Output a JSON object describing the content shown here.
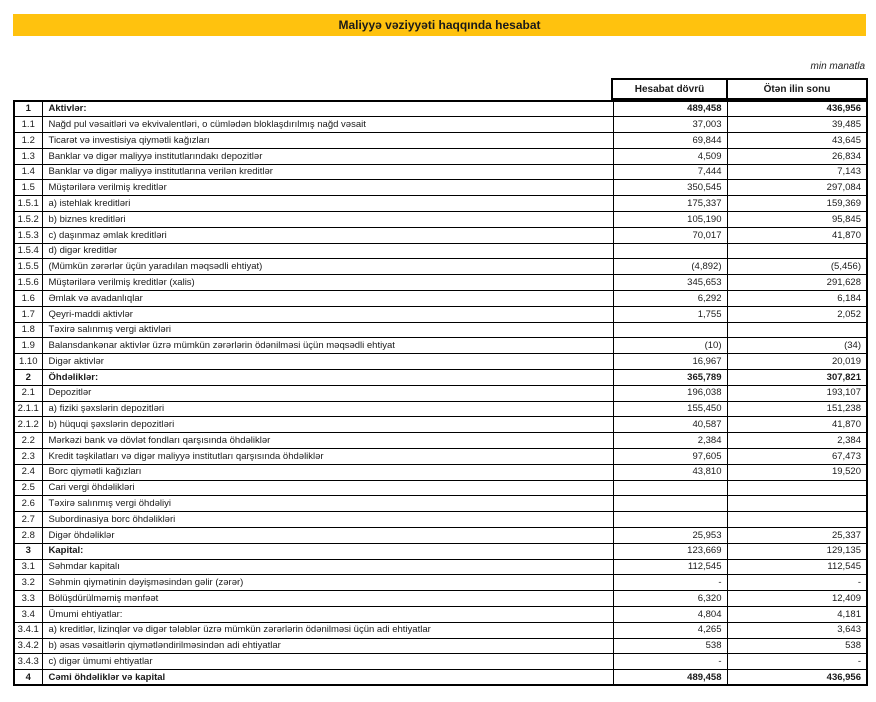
{
  "report": {
    "title": "Maliyyə vəziyyəti haqqında hesabat",
    "unit_note": "min manatla",
    "columns": {
      "current": "Hesabat dövrü",
      "previous": "Ötən ilin sonu"
    }
  },
  "colors": {
    "banner": "#FFC20E",
    "banner_text": "#1A1A1A",
    "border": "#000000"
  },
  "table": {
    "rows": [
      {
        "num": "1",
        "label": "Aktivlər:",
        "current": "489,458",
        "previous": "436,956",
        "bold_label": true,
        "bold_values": true
      },
      {
        "num": "1.1",
        "label": "Nağd pul vəsaitləri və ekvivalentləri, o cümlədən bloklaşdırılmış nağd vəsait",
        "current": "37,003",
        "previous": "39,485",
        "bold_label": false,
        "bold_values": false
      },
      {
        "num": "1.2",
        "label": "Ticarət və investisiya qiymətli kağızları",
        "current": "69,844",
        "previous": "43,645",
        "bold_label": false,
        "bold_values": false
      },
      {
        "num": "1.3",
        "label": "Banklar və digər maliyyə institutlarındakı depozitlər",
        "current": "4,509",
        "previous": "26,834",
        "bold_label": false,
        "bold_values": false
      },
      {
        "num": "1.4",
        "label": "Banklar və digər maliyyə institutlarına verilən kreditlər",
        "current": "7,444",
        "previous": "7,143",
        "bold_label": false,
        "bold_values": false
      },
      {
        "num": "1.5",
        "label": "Müştərilərə verilmiş kreditlər",
        "current": "350,545",
        "previous": "297,084",
        "bold_label": false,
        "bold_values": false
      },
      {
        "num": "1.5.1",
        "label": "a) istehlak kreditləri",
        "current": "175,337",
        "previous": "159,369",
        "bold_label": false,
        "bold_values": false
      },
      {
        "num": "1.5.2",
        "label": "b) biznes kreditləri",
        "current": "105,190",
        "previous": "95,845",
        "bold_label": false,
        "bold_values": false
      },
      {
        "num": "1.5.3",
        "label": "c) daşınmaz əmlak kreditləri",
        "current": "70,017",
        "previous": "41,870",
        "bold_label": false,
        "bold_values": false
      },
      {
        "num": "1.5.4",
        "label": "d) digər kreditlər",
        "current": "",
        "previous": "",
        "bold_label": false,
        "bold_values": false
      },
      {
        "num": "1.5.5",
        "label": "(Mümkün zərərlər üçün yaradılan məqsədli ehtiyat)",
        "current": "(4,892)",
        "previous": "(5,456)",
        "bold_label": false,
        "bold_values": false
      },
      {
        "num": "1.5.6",
        "label": "Müştərilərə verilmiş kreditlər (xalis)",
        "current": "345,653",
        "previous": "291,628",
        "bold_label": false,
        "bold_values": false
      },
      {
        "num": "1.6",
        "label": "Əmlak və avadanlıqlar",
        "current": "6,292",
        "previous": "6,184",
        "bold_label": false,
        "bold_values": false
      },
      {
        "num": "1.7",
        "label": "Qeyri-maddi aktivlər",
        "current": "1,755",
        "previous": "2,052",
        "bold_label": false,
        "bold_values": false
      },
      {
        "num": "1.8",
        "label": "Təxirə salınmış vergi aktivləri",
        "current": "",
        "previous": "",
        "bold_label": false,
        "bold_values": false
      },
      {
        "num": "1.9",
        "label": "Balansdankənar aktivlər üzrə mümkün zərərlərin ödənilməsi üçün məqsədli ehtiyat",
        "current": "(10)",
        "previous": "(34)",
        "bold_label": false,
        "bold_values": false
      },
      {
        "num": "1.10",
        "label": "Digər aktivlər",
        "current": "16,967",
        "previous": "20,019",
        "bold_label": false,
        "bold_values": false
      },
      {
        "num": "2",
        "label": "Öhdəliklər:",
        "current": "365,789",
        "previous": "307,821",
        "bold_label": true,
        "bold_values": true
      },
      {
        "num": "2.1",
        "label": "Depozitlər",
        "current": "196,038",
        "previous": "193,107",
        "bold_label": false,
        "bold_values": false
      },
      {
        "num": "2.1.1",
        "label": "a) fiziki şəxslərin depozitləri",
        "current": "155,450",
        "previous": "151,238",
        "bold_label": false,
        "bold_values": false
      },
      {
        "num": "2.1.2",
        "label": "b) hüquqi şəxslərin depozitləri",
        "current": "40,587",
        "previous": "41,870",
        "bold_label": false,
        "bold_values": false
      },
      {
        "num": "2.2",
        "label": "Mərkəzi bank və dövlət fondları qarşısında öhdəliklər",
        "current": "2,384",
        "previous": "2,384",
        "bold_label": false,
        "bold_values": false
      },
      {
        "num": "2.3",
        "label": "Kredit təşkilatları və digər maliyyə institutları qarşısında öhdəliklər",
        "current": "97,605",
        "previous": "67,473",
        "bold_label": false,
        "bold_values": false
      },
      {
        "num": "2.4",
        "label": "Borc qiymətli kağızları",
        "current": "43,810",
        "previous": "19,520",
        "bold_label": false,
        "bold_values": false
      },
      {
        "num": "2.5",
        "label": "Cari vergi öhdəlikləri",
        "current": "",
        "previous": "",
        "bold_label": false,
        "bold_values": false
      },
      {
        "num": "2.6",
        "label": "Təxirə salınmış vergi öhdəliyi",
        "current": "",
        "previous": "",
        "bold_label": false,
        "bold_values": false
      },
      {
        "num": "2.7",
        "label": "Subordinasiya borc öhdəlikləri",
        "current": "",
        "previous": "",
        "bold_label": false,
        "bold_values": false
      },
      {
        "num": "2.8",
        "label": "Digər öhdəliklər",
        "current": "25,953",
        "previous": "25,337",
        "bold_label": false,
        "bold_values": false
      },
      {
        "num": "3",
        "label": "Kapital:",
        "current": "123,669",
        "previous": "129,135",
        "bold_label": true,
        "bold_values": false
      },
      {
        "num": "3.1",
        "label": "Səhmdar kapitalı",
        "current": "112,545",
        "previous": "112,545",
        "bold_label": false,
        "bold_values": false
      },
      {
        "num": "3.2",
        "label": "Səhmin qiymətinin dəyişməsindən gəlir (zərər)",
        "current": "-",
        "previous": "-",
        "bold_label": false,
        "bold_values": false
      },
      {
        "num": "3.3",
        "label": "Bölüşdürülməmiş mənfəət",
        "current": "6,320",
        "previous": "12,409",
        "bold_label": false,
        "bold_values": false
      },
      {
        "num": "3.4",
        "label": "Ümumi ehtiyatlar:",
        "current": "4,804",
        "previous": "4,181",
        "bold_label": false,
        "bold_values": false
      },
      {
        "num": "3.4.1",
        "label": "a) kreditlər, lizinqlər və digər tələblər üzrə mümkün zərərlərin ödənilməsi üçün adi ehtiyatlar",
        "current": "4,265",
        "previous": "3,643",
        "bold_label": false,
        "bold_values": false
      },
      {
        "num": "3.4.2",
        "label": "b) əsas vəsaitlərin qiymətləndirilməsindən adi ehtiyatlar",
        "current": "538",
        "previous": "538",
        "bold_label": false,
        "bold_values": false
      },
      {
        "num": "3.4.3",
        "label": "c) digər ümumi ehtiyatlar",
        "current": "-",
        "previous": "-",
        "bold_label": false,
        "bold_values": false
      },
      {
        "num": "4",
        "label": "Cəmi öhdəliklər və kapital",
        "current": "489,458",
        "previous": "436,956",
        "bold_label": true,
        "bold_values": true
      }
    ]
  }
}
